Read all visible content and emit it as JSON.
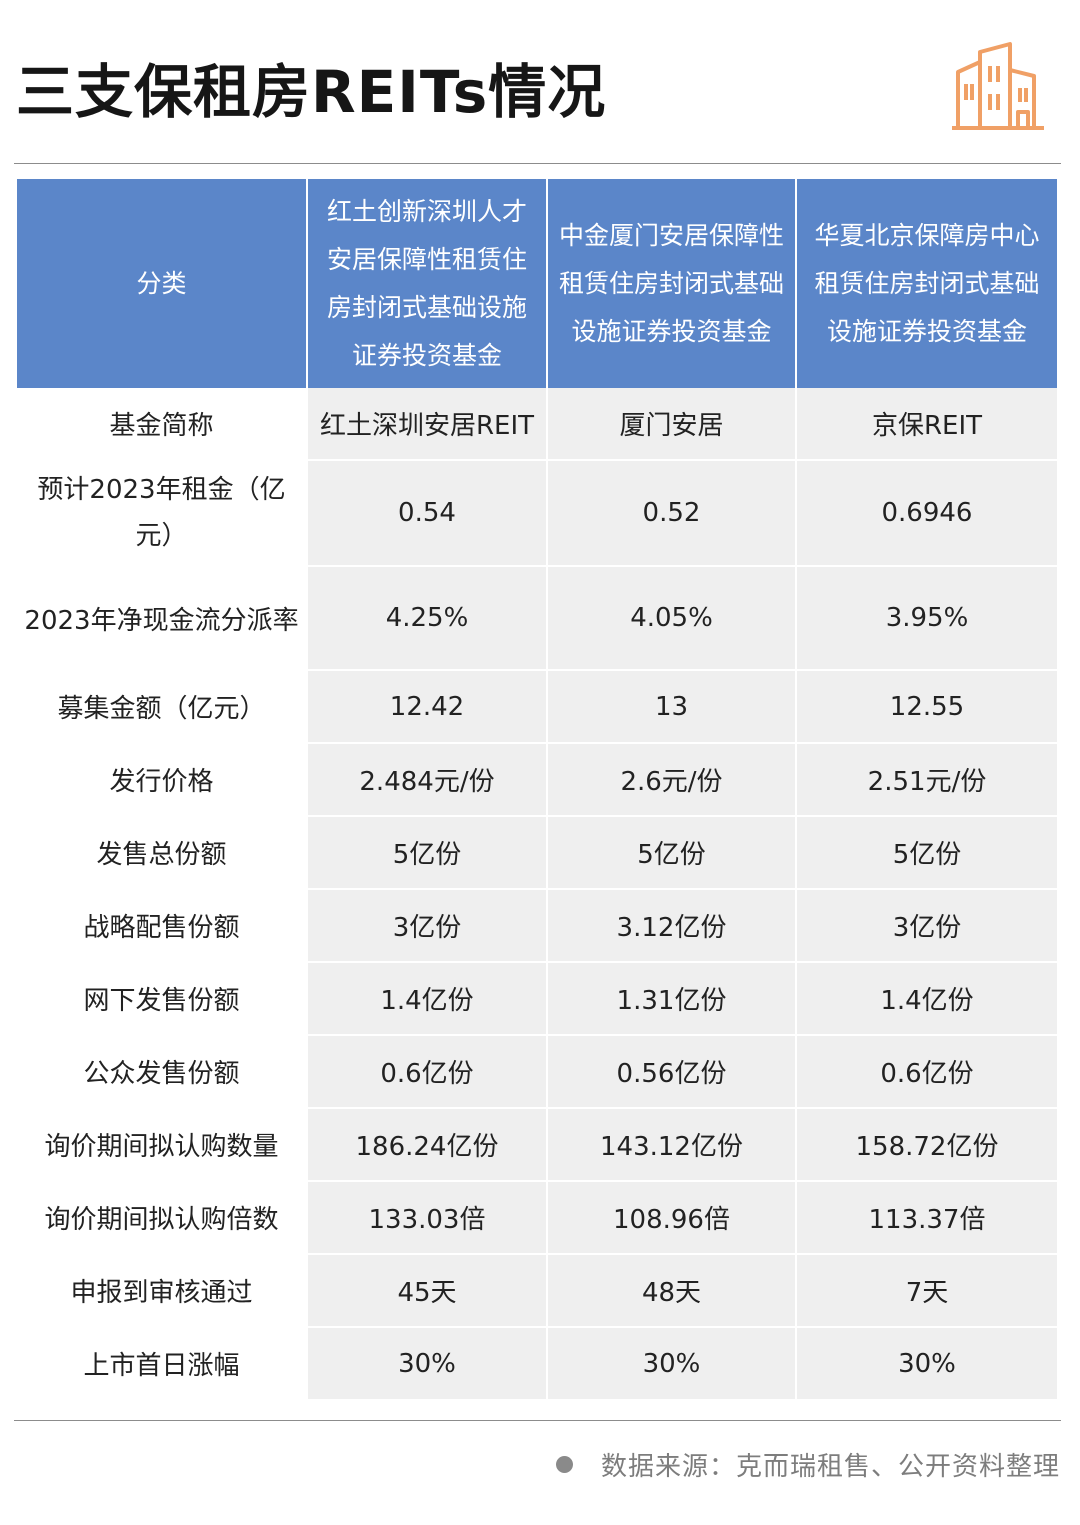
{
  "title": "三支保租房REITs情况",
  "header": {
    "category_label": "分类",
    "funds": [
      "红土创新深圳人才安居保障性租赁住房封闭式基础设施证券投资基金",
      "中金厦门安居保障性租赁住房封闭式基础设施证券投资基金",
      "华夏北京保障房中心租赁住房封闭式基础设施证券投资基金"
    ]
  },
  "rows": [
    {
      "label": "基金简称",
      "values": [
        "红土深圳安居REIT",
        "厦门安居",
        "京保REIT"
      ]
    },
    {
      "label": "预计2023年租金（亿元）",
      "values": [
        "0.54",
        "0.52",
        "0.6946"
      ]
    },
    {
      "label": "2023年净现金流分派率",
      "values": [
        "4.25%",
        "4.05%",
        "3.95%"
      ]
    },
    {
      "label": "募集金额（亿元）",
      "values": [
        "12.42",
        "13",
        "12.55"
      ]
    },
    {
      "label": "发行价格",
      "values": [
        "2.484元/份",
        "2.6元/份",
        "2.51元/份"
      ]
    },
    {
      "label": "发售总份额",
      "values": [
        "5亿份",
        "5亿份",
        "5亿份"
      ]
    },
    {
      "label": "战略配售份额",
      "values": [
        "3亿份",
        "3.12亿份",
        "3亿份"
      ]
    },
    {
      "label": "网下发售份额",
      "values": [
        "1.4亿份",
        "1.31亿份",
        "1.4亿份"
      ]
    },
    {
      "label": "公众发售份额",
      "values": [
        "0.6亿份",
        "0.56亿份",
        "0.6亿份"
      ]
    },
    {
      "label": "询价期间拟认购数量",
      "values": [
        "186.24亿份",
        "143.12亿份",
        "158.72亿份"
      ]
    },
    {
      "label": "询价期间拟认购倍数",
      "values": [
        "133.03倍",
        "108.96倍",
        "113.37倍"
      ]
    },
    {
      "label": "申报到审核通过",
      "values": [
        "45天",
        "48天",
        "7天"
      ]
    },
    {
      "label": "上市首日涨幅",
      "values": [
        "30%",
        "30%",
        "30%"
      ]
    }
  ],
  "source": "数据来源：克而瑞租售、公开资料整理",
  "colors": {
    "header_bg": "#5b86c9",
    "cell_bg": "#efefef",
    "logo": "#f0a066"
  },
  "icons": {
    "logo": "buildings-icon",
    "bullet": "dot-icon"
  }
}
